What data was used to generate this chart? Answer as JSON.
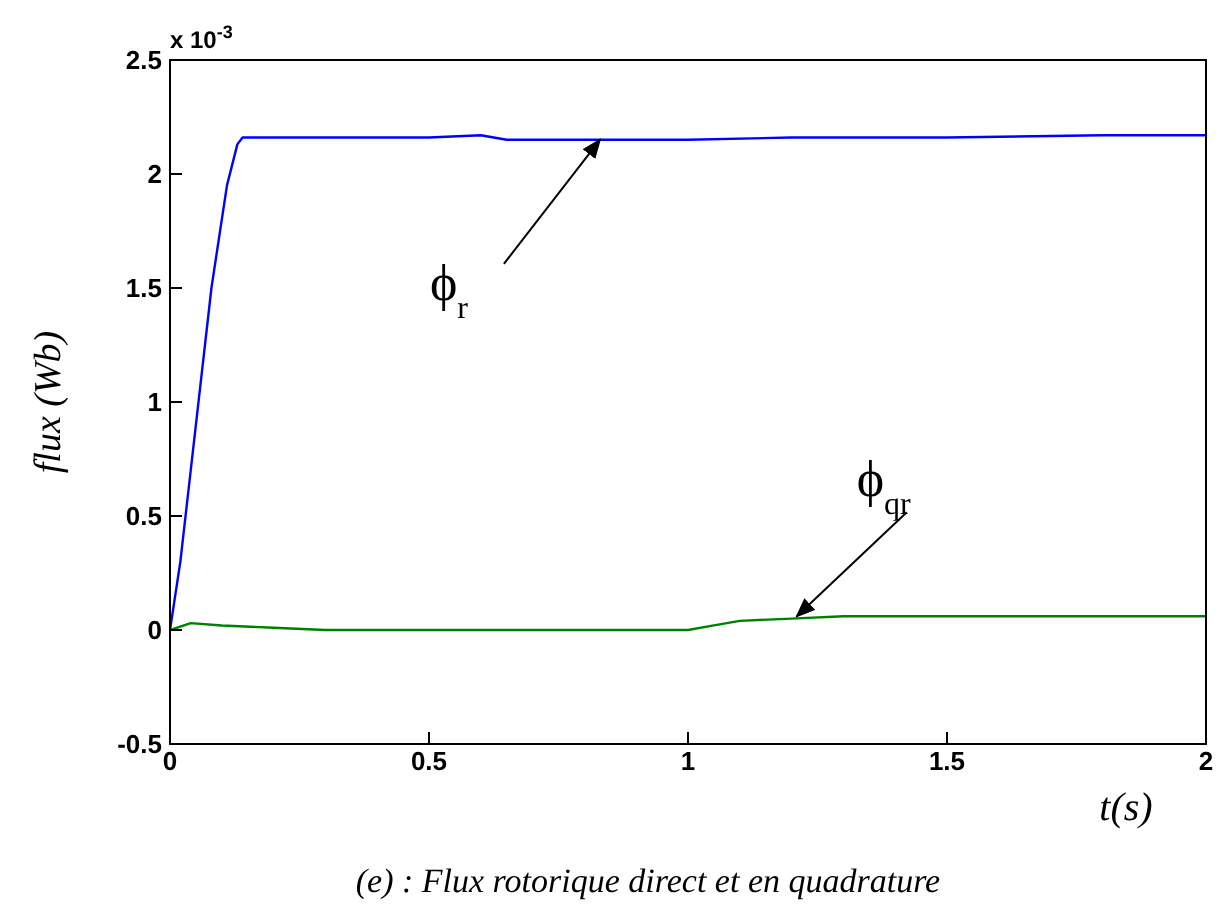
{
  "chart_data": {
    "type": "line",
    "xlabel": "t(s)",
    "ylabel": "flux  (Wb)",
    "xlim": [
      0,
      2
    ],
    "xticks": [
      0,
      0.5,
      1,
      1.5,
      2
    ],
    "ylim": [
      -0.5,
      2.5
    ],
    "yticks": [
      -0.5,
      0,
      0.5,
      1,
      1.5,
      2,
      2.5
    ],
    "grid": false,
    "series": [
      {
        "color": "#0000ff",
        "x": [
          0,
          0.02,
          0.05,
          0.08,
          0.11,
          0.13,
          0.14,
          0.3,
          0.5,
          0.6,
          0.65,
          0.8,
          1.0,
          1.2,
          1.5,
          1.8,
          2.0
        ],
        "values": [
          0,
          0.3,
          0.9,
          1.5,
          1.95,
          2.13,
          2.16,
          2.16,
          2.16,
          2.17,
          2.15,
          2.15,
          2.15,
          2.16,
          2.16,
          2.17,
          2.17
        ]
      },
      {
        "color": "#008000",
        "x": [
          0,
          0.04,
          0.1,
          0.2,
          0.3,
          1.0,
          1.05,
          1.1,
          1.2,
          1.3,
          1.5,
          2.0
        ],
        "values": [
          0,
          0.03,
          0.02,
          0.01,
          0,
          0,
          0.02,
          0.04,
          0.05,
          0.06,
          0.06,
          0.06
        ]
      }
    ],
    "annotations": [
      "x 10$^{-3}$",
      "(e) : Flux rotorique direct et  en quadrature",
      {
        "text": "ϕ$_{r}$",
        "x": 0.83,
        "y": 2.15
      },
      {
        "text": "ϕ$_{qr}$",
        "x": 1.21,
        "y": 0.06
      }
    ]
  }
}
